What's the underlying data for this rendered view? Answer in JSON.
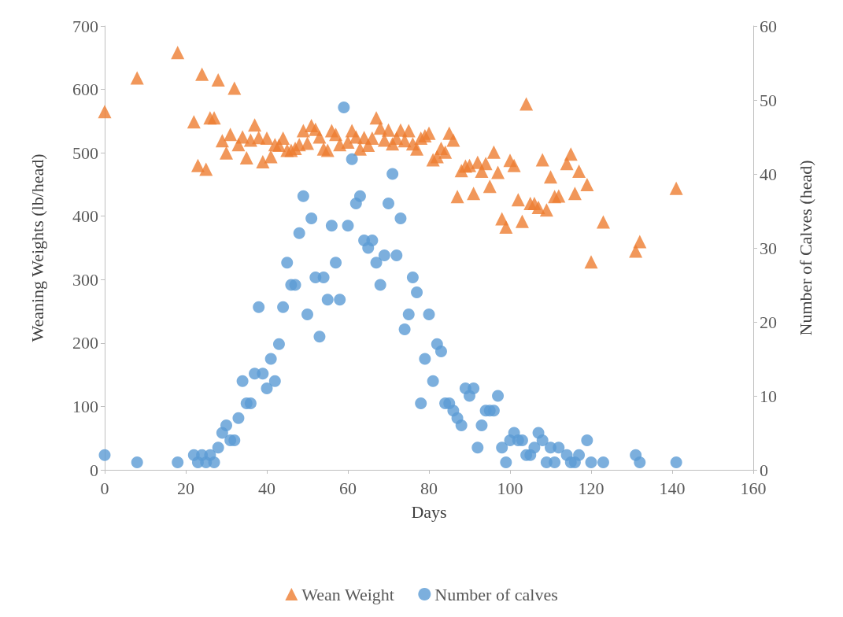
{
  "chart_data": {
    "type": "scatter",
    "xlabel": "Days",
    "ylabel": "Weaning Weights (lb/head)",
    "y2label": "Number of Calves (head)",
    "xlim": [
      0,
      160
    ],
    "xticks": [
      0,
      20,
      40,
      60,
      80,
      100,
      120,
      140,
      160
    ],
    "ylim": [
      0,
      700
    ],
    "yticks": [
      0,
      100,
      200,
      300,
      400,
      500,
      600,
      700
    ],
    "y2lim": [
      0,
      60
    ],
    "y2ticks": [
      0,
      10,
      20,
      30,
      40,
      50,
      60
    ],
    "grid": false,
    "legend": "bottom",
    "series": [
      {
        "name": "Wean Weight",
        "color": "#ed7d31",
        "marker": "triangle",
        "x": [
          0,
          8,
          18,
          22,
          23,
          24,
          25,
          26,
          27,
          28,
          29,
          30,
          31,
          32,
          33,
          34,
          35,
          36,
          37,
          38,
          39,
          40,
          41,
          42,
          43,
          44,
          45,
          46,
          47,
          48,
          49,
          50,
          51,
          52,
          53,
          54,
          55,
          56,
          57,
          58,
          60,
          61,
          62,
          63,
          64,
          65,
          66,
          67,
          68,
          69,
          70,
          71,
          72,
          73,
          74,
          75,
          76,
          77,
          78,
          79,
          80,
          81,
          82,
          83,
          84,
          85,
          86,
          87,
          88,
          89,
          90,
          91,
          92,
          93,
          94,
          95,
          96,
          97,
          98,
          99,
          100,
          101,
          102,
          103,
          104,
          105,
          106,
          107,
          108,
          109,
          110,
          111,
          112,
          114,
          115,
          116,
          117,
          119,
          120,
          123,
          131,
          132,
          141
        ],
        "values": [
          565,
          618,
          658,
          549,
          480,
          624,
          474,
          555,
          555,
          615,
          519,
          500,
          529,
          602,
          513,
          525,
          492,
          520,
          544,
          524,
          486,
          523,
          494,
          513,
          512,
          523,
          504,
          504,
          507,
          513,
          535,
          515,
          543,
          537,
          525,
          506,
          504,
          535,
          529,
          513,
          517,
          535,
          525,
          506,
          524,
          512,
          523,
          555,
          539,
          520,
          536,
          514,
          523,
          536,
          519,
          535,
          514,
          506,
          523,
          527,
          531,
          489,
          494,
          507,
          501,
          531,
          520,
          431,
          472,
          479,
          480,
          436,
          485,
          471,
          483,
          447,
          501,
          469,
          396,
          383,
          488,
          480,
          426,
          392,
          577,
          420,
          420,
          414,
          489,
          410,
          462,
          431,
          432,
          483,
          498,
          436,
          471,
          450,
          328,
          391,
          345,
          360,
          444
        ]
      },
      {
        "name": "Number of calves",
        "color": "#5b9bd5",
        "marker": "circle",
        "axis": "y2",
        "x": [
          0,
          8,
          18,
          22,
          23,
          24,
          25,
          26,
          27,
          28,
          29,
          30,
          31,
          32,
          33,
          34,
          35,
          36,
          37,
          38,
          39,
          40,
          41,
          42,
          43,
          44,
          45,
          46,
          47,
          48,
          49,
          50,
          51,
          52,
          53,
          54,
          55,
          56,
          57,
          58,
          59,
          60,
          61,
          62,
          63,
          64,
          65,
          66,
          67,
          68,
          69,
          70,
          71,
          72,
          73,
          74,
          75,
          76,
          77,
          78,
          79,
          80,
          81,
          82,
          83,
          84,
          85,
          86,
          87,
          88,
          89,
          90,
          91,
          92,
          93,
          94,
          95,
          96,
          97,
          98,
          99,
          100,
          101,
          102,
          103,
          104,
          105,
          106,
          107,
          108,
          109,
          110,
          111,
          112,
          114,
          115,
          116,
          117,
          119,
          120,
          123,
          131,
          132,
          141
        ],
        "values": [
          2,
          1,
          1,
          2,
          1,
          2,
          1,
          2,
          1,
          3,
          5,
          6,
          4,
          4,
          7,
          12,
          9,
          9,
          13,
          22,
          13,
          11,
          15,
          12,
          17,
          22,
          28,
          25,
          25,
          32,
          37,
          21,
          34,
          26,
          18,
          26,
          23,
          33,
          28,
          23,
          49,
          33,
          42,
          36,
          37,
          31,
          30,
          31,
          28,
          25,
          29,
          36,
          40,
          29,
          34,
          19,
          21,
          26,
          24,
          9,
          15,
          21,
          12,
          17,
          16,
          9,
          9,
          8,
          7,
          6,
          11,
          10,
          11,
          3,
          6,
          8,
          8,
          8,
          10,
          3,
          1,
          4,
          5,
          4,
          4,
          2,
          2,
          3,
          5,
          4,
          1,
          3,
          1,
          3,
          2,
          1,
          1,
          2,
          4,
          1,
          1,
          2,
          1,
          1
        ]
      }
    ]
  }
}
